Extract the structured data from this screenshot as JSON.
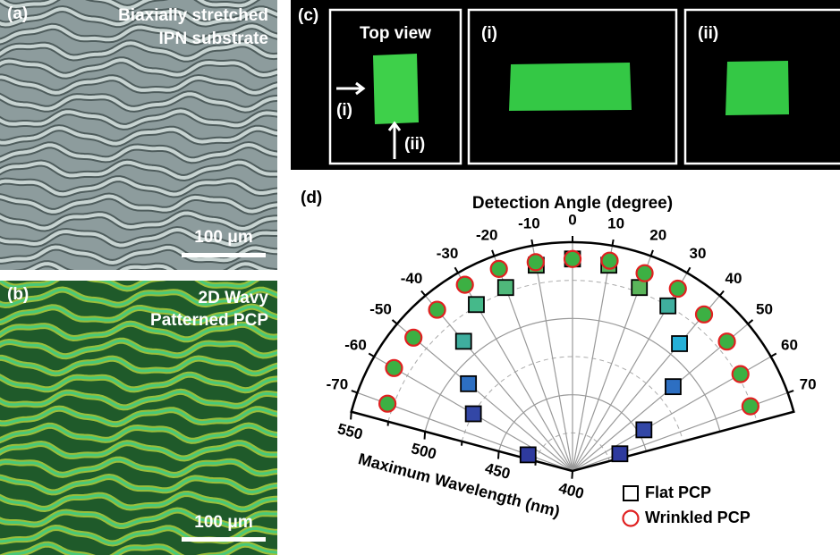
{
  "panels": {
    "a": {
      "label": "(a)",
      "caption": [
        "Biaxially stretched",
        "IPN substrate"
      ],
      "scale_bar": "100 μm"
    },
    "b": {
      "label": "(b)",
      "caption": [
        "2D Wavy",
        "Patterned PCP"
      ],
      "scale_bar": "100 μm"
    },
    "c": {
      "label": "(c)",
      "boxes": [
        {
          "title": "Top view",
          "arrows": [
            "(i)",
            "(ii)"
          ]
        },
        {
          "title": "(i)"
        },
        {
          "title": "(ii)"
        }
      ]
    }
  },
  "chart_data": {
    "type": "polar",
    "label": "(d)",
    "title": "Detection Angle (degree)",
    "raxis_label": "Maximum Wavelength (nm)",
    "xlim": [
      -75,
      75
    ],
    "xticks": [
      -70,
      -60,
      -50,
      -40,
      -30,
      -20,
      -10,
      0,
      10,
      20,
      30,
      40,
      50,
      60,
      70
    ],
    "rlim": [
      400,
      550
    ],
    "rticks": [
      400,
      450,
      500,
      550
    ],
    "rminorticks": [
      425,
      475,
      525
    ],
    "grid": true,
    "legend": "lower right",
    "x": [
      -70,
      -60,
      -50,
      -40,
      -30,
      -20,
      -10,
      0,
      10,
      20,
      30,
      40,
      50,
      60,
      70
    ],
    "series": [
      {
        "name": "Flat PCP",
        "marker": "square",
        "edgecolor": "#000000",
        "colors": [
          "#2e3a9e",
          "#3347a6",
          "#2d6fc2",
          "#3fae9e",
          "#45b98a",
          "#4fb87a",
          "#55b25a",
          "#55b25a",
          "#55b25a",
          "#5ab55a",
          "#3fae9e",
          "#25b0d8",
          "#2d6fc2",
          "#3347a6",
          "#2e3a9e"
        ],
        "values": [
          431,
          475,
          489,
          511,
          526,
          528,
          537,
          539,
          537,
          528,
          525,
          509,
          486,
          454,
          433
        ]
      },
      {
        "name": "Wrinkled PCP",
        "marker": "circle",
        "edgecolor": "#e02020",
        "color": "#3cb043",
        "values": [
          529,
          535,
          536,
          538,
          541,
          541,
          539,
          539,
          540,
          538,
          538,
          534,
          532,
          527,
          524
        ]
      }
    ]
  }
}
